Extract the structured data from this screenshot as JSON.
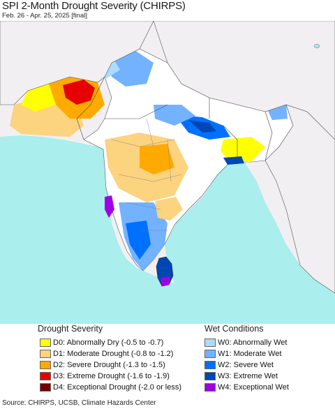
{
  "header": {
    "title": "SPI 2-Month Drought Severity (CHIRPS)",
    "subtitle": "Feb. 26 - Apr. 25, 2025 [final]"
  },
  "legend": {
    "drought_title": "Drought Severity",
    "wet_title": "Wet Conditions",
    "drought_items": [
      {
        "label": "D0: Abnormally Dry (-0.5 to -0.7)",
        "color": "#ffff00"
      },
      {
        "label": "D1: Moderate Drought (-0.8 to -1.2)",
        "color": "#fcd37f"
      },
      {
        "label": "D2: Severe Drought (-1.3 to -1.5)",
        "color": "#ffaa00"
      },
      {
        "label": "D3: Extreme Drought (-1.6 to -1.9)",
        "color": "#e60000"
      },
      {
        "label": "D4: Exceptional Drought (-2.0 or less)",
        "color": "#730000"
      }
    ],
    "wet_items": [
      {
        "label": "W0: Abnormally Wet",
        "color": "#aadcff"
      },
      {
        "label": "W1: Moderate Wet",
        "color": "#73b2ff"
      },
      {
        "label": "W2: Severe Wet",
        "color": "#0070ff"
      },
      {
        "label": "W3: Extreme Wet",
        "color": "#0046b4"
      },
      {
        "label": "W4: Exceptional Wet",
        "color": "#a000e6"
      }
    ]
  },
  "source": "Source: CHIRPS, UCSB, Climate Hazards Center"
}
